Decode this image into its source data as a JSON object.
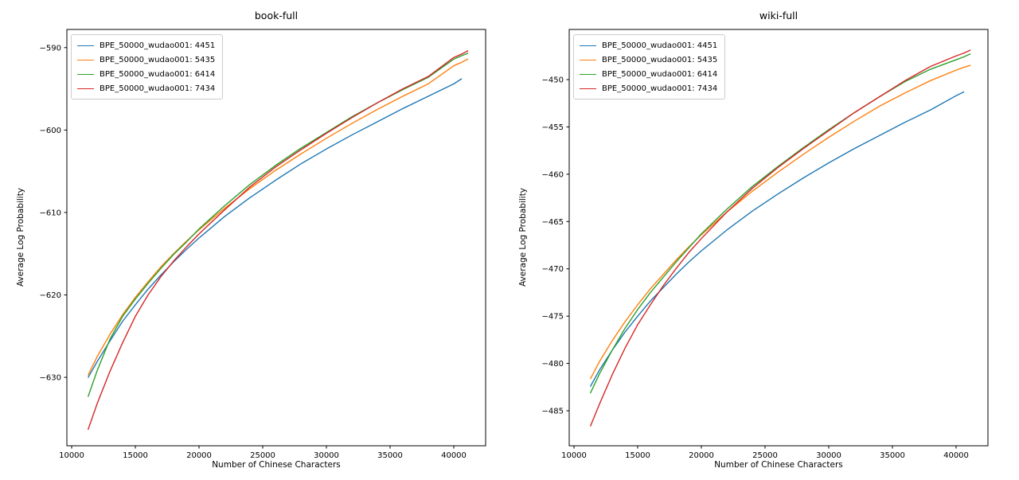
{
  "figure": {
    "background": "#ffffff",
    "text_color": "#000000",
    "spine_color": "#000000"
  },
  "chart_data": [
    {
      "type": "line",
      "title": "book-full",
      "xlabel": "Number of Chinese Characters",
      "ylabel": "Average Log Probability",
      "xlim": [
        9625,
        42500
      ],
      "ylim": [
        -638.3,
        -587.8
      ],
      "xticks": [
        10000,
        15000,
        20000,
        25000,
        30000,
        35000,
        40000
      ],
      "yticks": [
        -590,
        -600,
        -610,
        -620,
        -630
      ],
      "grid": false,
      "legend_position": "upper-left",
      "x": [
        11300,
        12000,
        13000,
        14000,
        15000,
        16000,
        17000,
        18000,
        19000,
        20000,
        22000,
        24000,
        26000,
        28000,
        30000,
        32000,
        34000,
        36000,
        38000,
        40000,
        40600,
        41100
      ],
      "series": [
        {
          "name": "BPE_50000_wudao001: 4451",
          "color": "#1f77b4",
          "values": [
            -630.0,
            -628.1,
            -625.6,
            -623.2,
            -621.2,
            -619.3,
            -617.6,
            -616.0,
            -614.5,
            -613.1,
            -610.5,
            -608.2,
            -606.1,
            -604.1,
            -602.3,
            -600.6,
            -599.0,
            -597.4,
            -595.9,
            -594.4,
            -593.8,
            null
          ]
        },
        {
          "name": "BPE_50000_wudao001: 5435",
          "color": "#ff7f0e",
          "values": [
            -629.7,
            -627.5,
            -624.8,
            -622.4,
            -620.3,
            -618.4,
            -616.6,
            -615.0,
            -613.5,
            -612.1,
            -609.5,
            -607.1,
            -604.9,
            -602.9,
            -601.0,
            -599.2,
            -597.5,
            -595.9,
            -594.4,
            -592.2,
            -591.8,
            -591.4
          ]
        },
        {
          "name": "BPE_50000_wudao001: 6414",
          "color": "#2ca02c",
          "values": [
            -632.3,
            -629.2,
            -625.4,
            -622.6,
            -620.5,
            -618.6,
            -616.8,
            -615.1,
            -613.6,
            -612.0,
            -609.2,
            -606.6,
            -604.3,
            -602.2,
            -600.3,
            -598.4,
            -596.7,
            -595.1,
            -593.6,
            -591.4,
            -591.0,
            -590.7
          ]
        },
        {
          "name": "BPE_50000_wudao001: 7434",
          "color": "#d62728",
          "values": [
            -636.3,
            -633.2,
            -629.3,
            -625.8,
            -622.6,
            -620.0,
            -617.8,
            -615.9,
            -614.2,
            -612.6,
            -609.7,
            -606.9,
            -604.5,
            -602.4,
            -600.4,
            -598.5,
            -596.7,
            -595.0,
            -593.5,
            -591.2,
            -590.8,
            -590.4
          ]
        }
      ]
    },
    {
      "type": "line",
      "title": "wiki-full",
      "xlabel": "Number of Chinese Characters",
      "ylabel": "Average Log Probability",
      "xlim": [
        9625,
        42500
      ],
      "ylim": [
        -488.7,
        -444.7
      ],
      "xticks": [
        10000,
        15000,
        20000,
        25000,
        30000,
        35000,
        40000
      ],
      "yticks": [
        -450,
        -455,
        -460,
        -465,
        -470,
        -475,
        -480,
        -485
      ],
      "grid": false,
      "legend_position": "upper-left",
      "x": [
        11300,
        12000,
        13000,
        14000,
        15000,
        16000,
        17000,
        18000,
        19000,
        20000,
        22000,
        24000,
        26000,
        28000,
        30000,
        32000,
        34000,
        36000,
        38000,
        40000,
        40600,
        41100
      ],
      "series": [
        {
          "name": "BPE_50000_wudao001: 4451",
          "color": "#1f77b4",
          "values": [
            -482.4,
            -480.7,
            -478.6,
            -476.7,
            -475.0,
            -473.4,
            -472.0,
            -470.6,
            -469.3,
            -468.1,
            -465.9,
            -463.9,
            -462.1,
            -460.4,
            -458.8,
            -457.3,
            -455.9,
            -454.5,
            -453.2,
            -451.7,
            -451.3,
            null
          ]
        },
        {
          "name": "BPE_50000_wudao001: 5435",
          "color": "#ff7f0e",
          "values": [
            -481.6,
            -479.8,
            -477.6,
            -475.6,
            -473.8,
            -472.1,
            -470.6,
            -469.1,
            -467.7,
            -466.4,
            -464.0,
            -461.8,
            -459.8,
            -457.9,
            -456.1,
            -454.4,
            -452.8,
            -451.4,
            -450.1,
            -449.0,
            -448.7,
            -448.5
          ]
        },
        {
          "name": "BPE_50000_wudao001: 6414",
          "color": "#2ca02c",
          "values": [
            -483.1,
            -481.1,
            -478.6,
            -476.3,
            -474.3,
            -472.5,
            -470.9,
            -469.3,
            -467.8,
            -466.3,
            -463.7,
            -461.3,
            -459.2,
            -457.2,
            -455.3,
            -453.5,
            -451.8,
            -450.2,
            -448.9,
            -447.9,
            -447.6,
            -447.3
          ]
        },
        {
          "name": "BPE_50000_wudao001: 7434",
          "color": "#d62728",
          "values": [
            -486.6,
            -484.3,
            -481.2,
            -478.4,
            -475.9,
            -473.8,
            -471.8,
            -470.0,
            -468.3,
            -466.8,
            -464.0,
            -461.5,
            -459.3,
            -457.3,
            -455.4,
            -453.5,
            -451.8,
            -450.1,
            -448.6,
            -447.5,
            -447.2,
            -446.9
          ]
        }
      ]
    }
  ]
}
